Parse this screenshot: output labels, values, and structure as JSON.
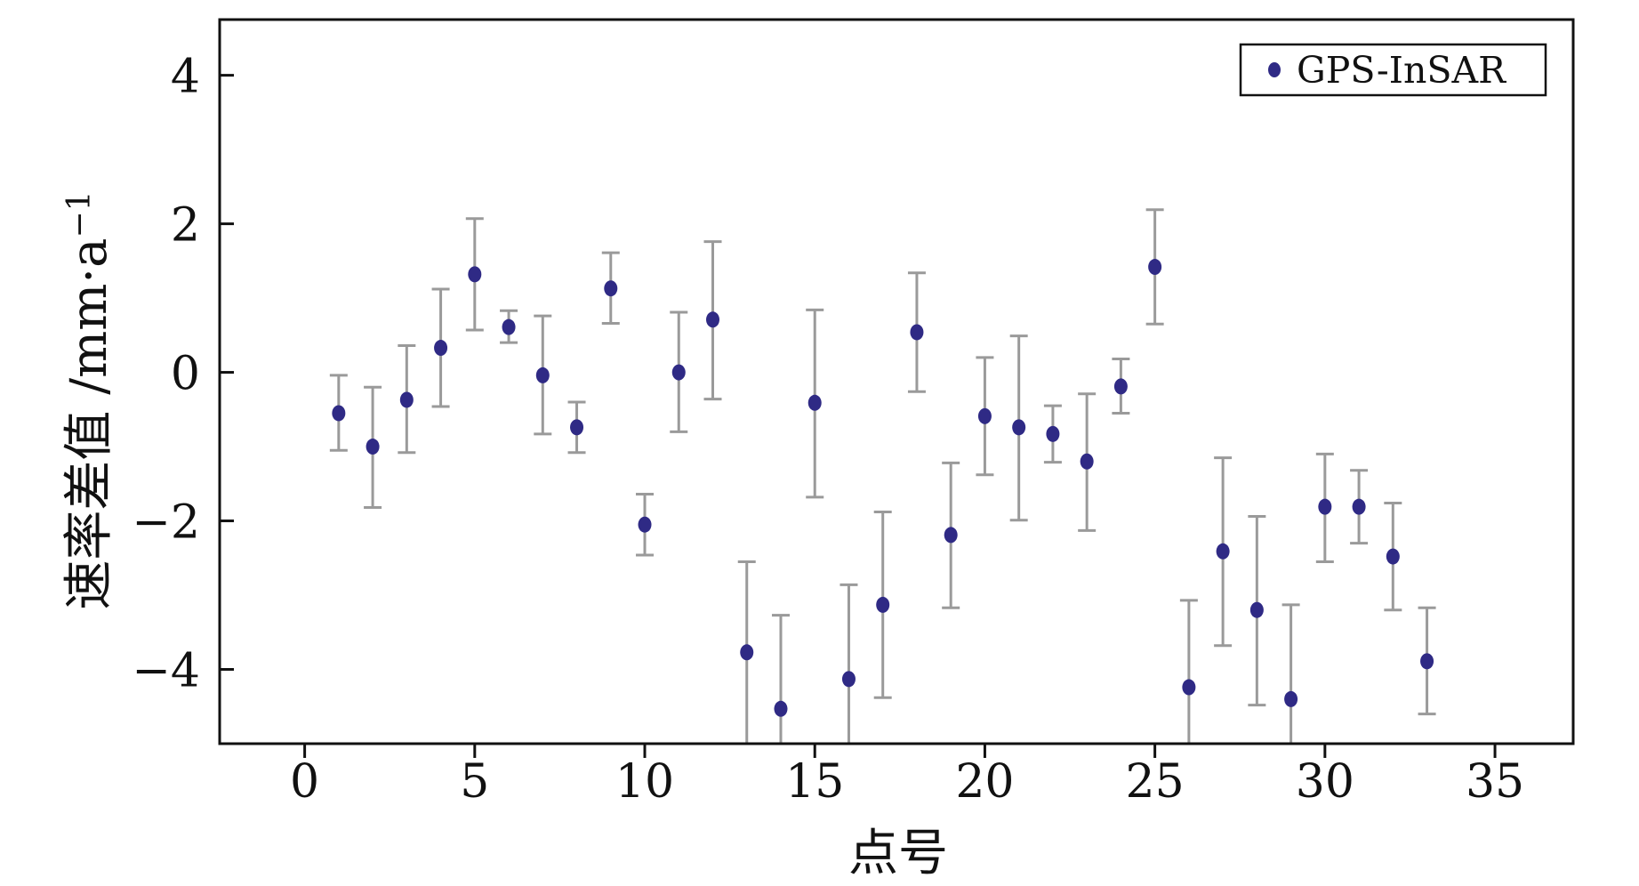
{
  "chart_data": {
    "type": "scatter",
    "title": "",
    "xlabel": "点号",
    "ylabel": "速率差值 /mm·a",
    "ylabel_sup": "−1",
    "xlim": [
      -2.5,
      37.3
    ],
    "ylim": [
      -5.0,
      4.75
    ],
    "x_ticks": [
      0,
      5,
      10,
      15,
      20,
      25,
      30,
      35
    ],
    "y_ticks": [
      4,
      2,
      0,
      -2,
      -4
    ],
    "x_tick_labels": [
      "0",
      "5",
      "10",
      "15",
      "20",
      "25",
      "30",
      "35"
    ],
    "y_tick_labels": [
      "4",
      "2",
      "0",
      "−2",
      "−4"
    ],
    "grid": false,
    "legend": {
      "position": "top-right",
      "entries": [
        "GPS-InSAR"
      ]
    },
    "colors": {
      "marker": "#2f2a85",
      "errorbar": "#9a9a9a",
      "axis": "#111111"
    },
    "series": [
      {
        "name": "GPS-InSAR",
        "points": [
          {
            "x": 1,
            "y": -0.55,
            "lo": -1.05,
            "hi": -0.04
          },
          {
            "x": 2,
            "y": -1.0,
            "lo": -1.82,
            "hi": -0.2
          },
          {
            "x": 3,
            "y": -0.37,
            "lo": -1.08,
            "hi": 0.36
          },
          {
            "x": 4,
            "y": 0.33,
            "lo": -0.46,
            "hi": 1.12
          },
          {
            "x": 5,
            "y": 1.32,
            "lo": 0.57,
            "hi": 2.07
          },
          {
            "x": 6,
            "y": 0.61,
            "lo": 0.4,
            "hi": 0.83
          },
          {
            "x": 7,
            "y": -0.04,
            "lo": -0.83,
            "hi": 0.76
          },
          {
            "x": 8,
            "y": -0.74,
            "lo": -1.08,
            "hi": -0.4
          },
          {
            "x": 9,
            "y": 1.13,
            "lo": 0.66,
            "hi": 1.61
          },
          {
            "x": 10,
            "y": -2.05,
            "lo": -2.46,
            "hi": -1.64
          },
          {
            "x": 11,
            "y": 0.0,
            "lo": -0.8,
            "hi": 0.81
          },
          {
            "x": 12,
            "y": 0.71,
            "lo": -0.36,
            "hi": 1.76
          },
          {
            "x": 13,
            "y": -3.77,
            "lo": -5.0,
            "hi": -2.55
          },
          {
            "x": 14,
            "y": -4.53,
            "lo": -5.0,
            "hi": -3.27
          },
          {
            "x": 15,
            "y": -0.41,
            "lo": -1.68,
            "hi": 0.84
          },
          {
            "x": 16,
            "y": -4.13,
            "lo": -5.0,
            "hi": -2.86
          },
          {
            "x": 17,
            "y": -3.13,
            "lo": -4.38,
            "hi": -1.88
          },
          {
            "x": 18,
            "y": 0.54,
            "lo": -0.26,
            "hi": 1.34
          },
          {
            "x": 19,
            "y": -2.19,
            "lo": -3.17,
            "hi": -1.22
          },
          {
            "x": 20,
            "y": -0.59,
            "lo": -1.38,
            "hi": 0.2
          },
          {
            "x": 21,
            "y": -0.74,
            "lo": -1.99,
            "hi": 0.49
          },
          {
            "x": 22,
            "y": -0.83,
            "lo": -1.21,
            "hi": -0.45
          },
          {
            "x": 23,
            "y": -1.2,
            "lo": -2.13,
            "hi": -0.29
          },
          {
            "x": 24,
            "y": -0.19,
            "lo": -0.55,
            "hi": 0.18
          },
          {
            "x": 25,
            "y": 1.42,
            "lo": 0.65,
            "hi": 2.19
          },
          {
            "x": 26,
            "y": -4.24,
            "lo": -5.0,
            "hi": -3.07
          },
          {
            "x": 27,
            "y": -2.41,
            "lo": -3.68,
            "hi": -1.15
          },
          {
            "x": 28,
            "y": -3.2,
            "lo": -4.48,
            "hi": -1.94
          },
          {
            "x": 29,
            "y": -4.4,
            "lo": -5.0,
            "hi": -3.13
          },
          {
            "x": 30,
            "y": -1.81,
            "lo": -2.55,
            "hi": -1.1
          },
          {
            "x": 31,
            "y": -1.81,
            "lo": -2.3,
            "hi": -1.32
          },
          {
            "x": 32,
            "y": -2.48,
            "lo": -3.2,
            "hi": -1.76
          },
          {
            "x": 33,
            "y": -3.89,
            "lo": -4.6,
            "hi": -3.17
          }
        ]
      }
    ]
  }
}
